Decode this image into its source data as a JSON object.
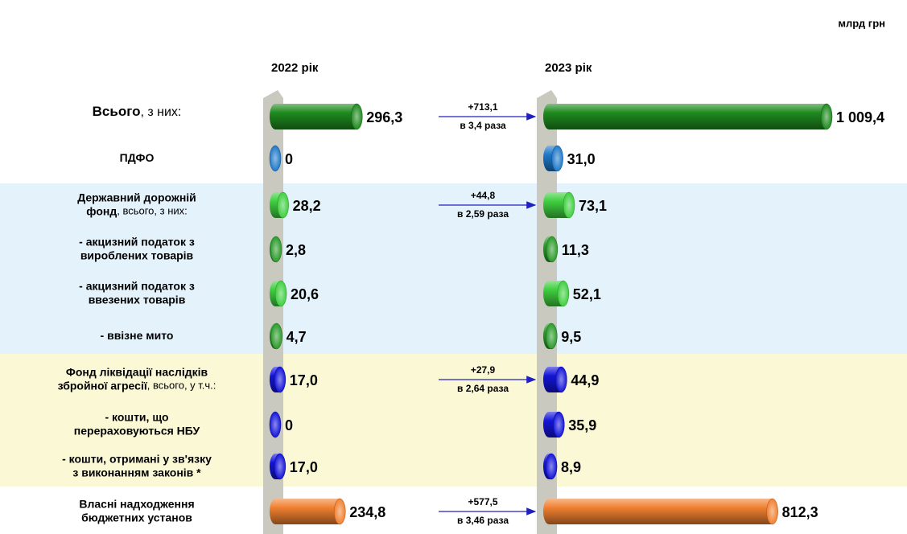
{
  "chart_data": {
    "type": "bar",
    "unit": "млрд грн",
    "categories": [
      {
        "lines": [
          "Всього"
        ],
        "note": ", з них:"
      },
      {
        "lines": [
          "ПДФО"
        ]
      },
      {
        "lines": [
          "Державний дорожній",
          "фонд"
        ],
        "note": ", всього, з них:"
      },
      {
        "lines": [
          "- акцизний податок з",
          "вироблених товарів"
        ]
      },
      {
        "lines": [
          "- акцизний податок з",
          "ввезених товарів"
        ]
      },
      {
        "lines": [
          "- ввізне мито"
        ]
      },
      {
        "lines": [
          "Фонд ліквідації наслідків",
          "збройної агресії"
        ],
        "note": ", всього, у т.ч.:"
      },
      {
        "lines": [
          "- кошти, що",
          "перераховуються НБУ"
        ]
      },
      {
        "lines": [
          "- кошти, отримані у зв'язку",
          "з виконанням законів *"
        ]
      },
      {
        "lines": [
          "Власні надходження",
          "бюджетних установ"
        ]
      }
    ],
    "colors": [
      "#1e8a1e",
      "#1f78c8",
      "#3fcf3f",
      "#2a9a2a",
      "#3fcf3f",
      "#2a9a2a",
      "#1414d8",
      "#1414d8",
      "#1414d8",
      "#f08030"
    ],
    "series": [
      {
        "name": "2022 рік",
        "values": [
          296.3,
          0,
          28.2,
          2.8,
          20.6,
          4.7,
          17.0,
          0,
          17.0,
          234.8
        ],
        "value_labels": [
          "296,3",
          "0",
          "28,2",
          "2,8",
          "20,6",
          "4,7",
          "17,0",
          "0",
          "17,0",
          "234,8"
        ]
      },
      {
        "name": "2023 рік",
        "values": [
          1009.4,
          31.0,
          73.1,
          11.3,
          52.1,
          9.5,
          44.9,
          35.9,
          8.9,
          812.3
        ],
        "value_labels": [
          "1 009,4",
          "31,0",
          "73,1",
          "11,3",
          "52,1",
          "9,5",
          "44,9",
          "35,9",
          "8,9",
          "812,3"
        ]
      }
    ],
    "changes": [
      {
        "diff": "+713,1",
        "ratio": "в 3,4 раза"
      },
      null,
      {
        "diff": "+44,8",
        "ratio": "в 2,59 раза"
      },
      null,
      null,
      null,
      {
        "diff": "+27,9",
        "ratio": "в 2,64 раза"
      },
      null,
      null,
      {
        "diff": "+577,5",
        "ratio": "в 3,46 раза"
      }
    ]
  }
}
